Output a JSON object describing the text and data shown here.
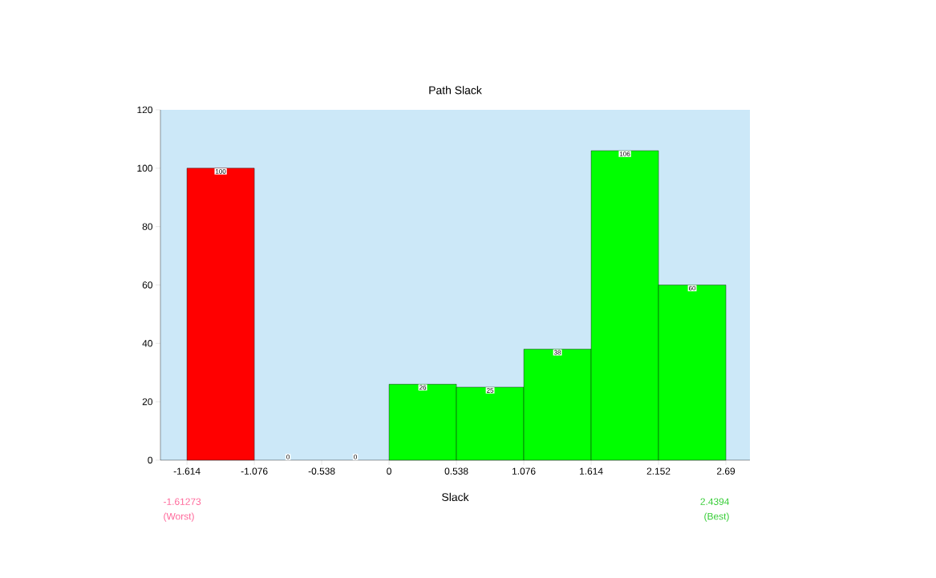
{
  "chart_data": {
    "type": "histogram",
    "title": "Path Slack",
    "xlabel": "Slack",
    "bins": [
      -1.614,
      -1.076,
      -0.538,
      0,
      0.538,
      1.076,
      1.614,
      2.152,
      2.69
    ],
    "values": [
      100,
      0,
      0,
      26,
      25,
      38,
      106,
      60
    ],
    "colors": [
      "#ff0000",
      "#00ff00",
      "#00ff00",
      "#00ff00",
      "#00ff00",
      "#00ff00",
      "#00ff00",
      "#00ff00"
    ],
    "data_labels": true,
    "xlim": [
      -1.826,
      2.882
    ],
    "ylim": [
      0,
      120
    ],
    "xticks": [
      -1.614,
      -1.076,
      -0.538,
      0,
      0.538,
      1.076,
      1.614,
      2.152,
      2.69
    ],
    "yticks": [
      0,
      20,
      40,
      60,
      80,
      100,
      120
    ],
    "annotations": [
      "-1.61273",
      "(Worst)",
      "2.4394",
      "(Best)"
    ]
  }
}
